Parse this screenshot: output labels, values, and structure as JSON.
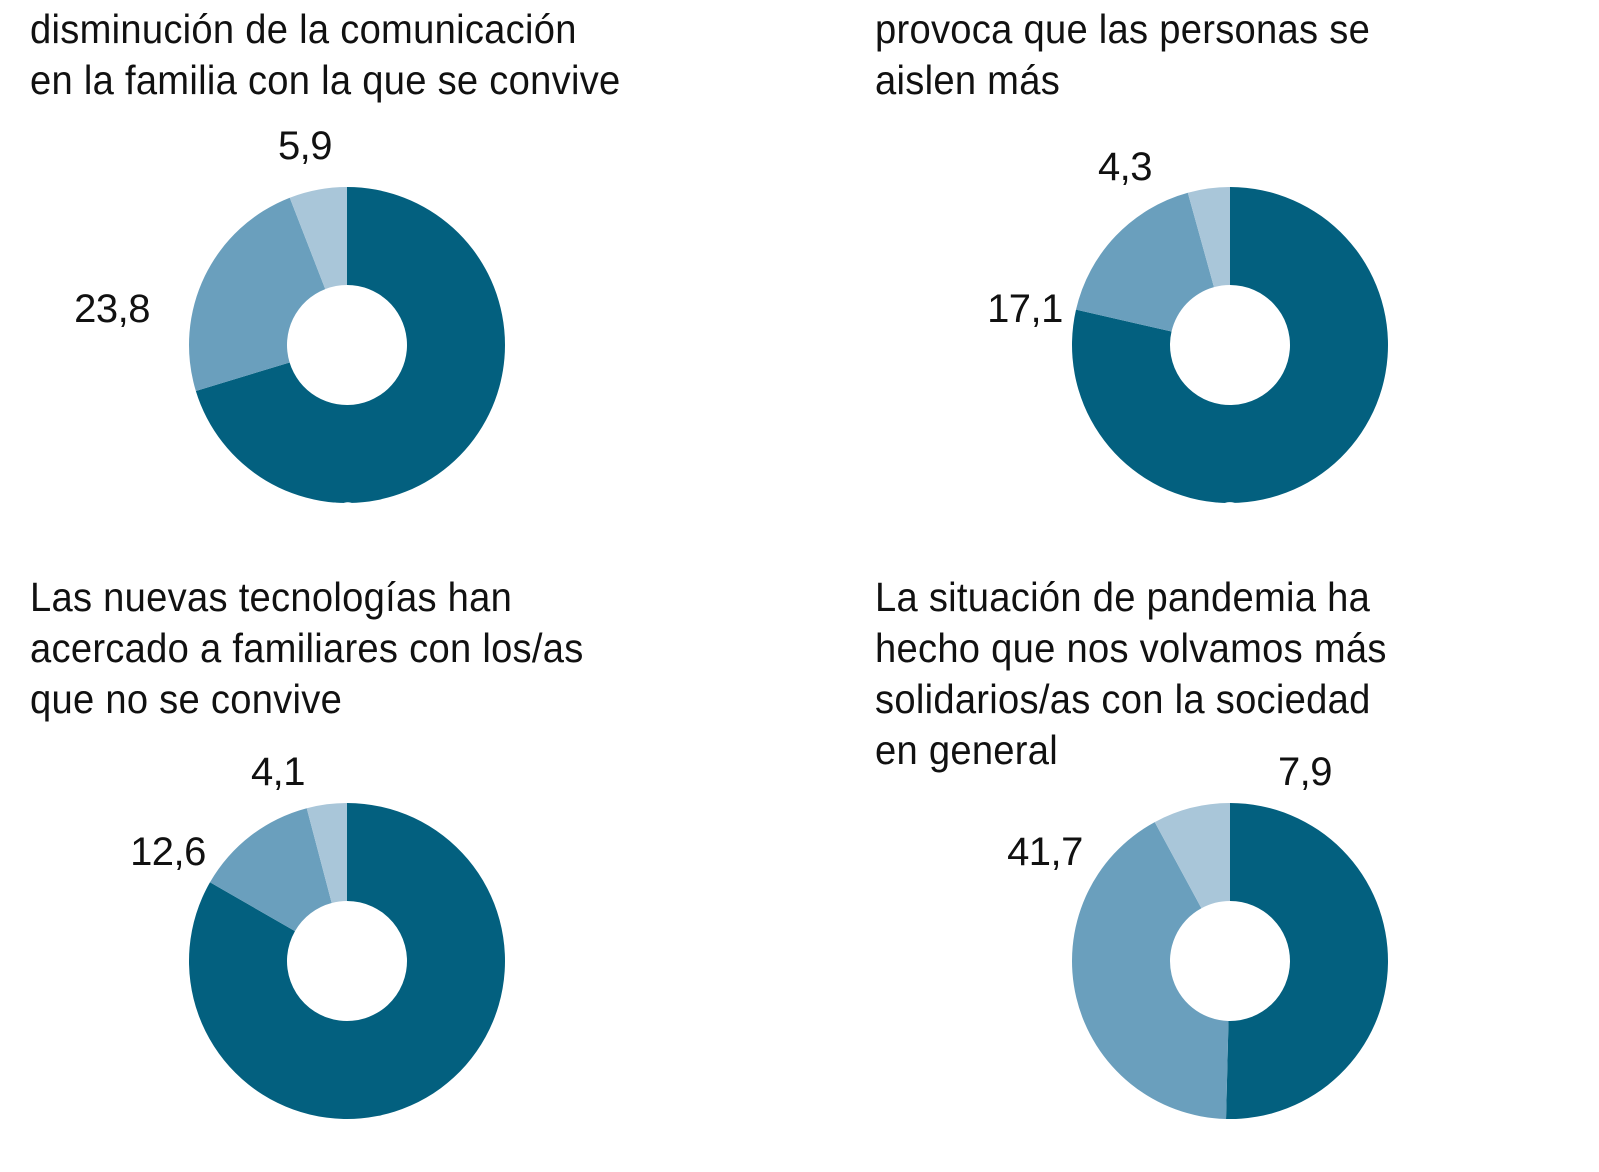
{
  "colors": {
    "dark": "#03607f",
    "medium": "#6a9fbd",
    "light": "#a9c6d9",
    "hole": "#ffffff"
  },
  "chart_data": [
    {
      "type": "pie",
      "variant": "donut",
      "title": "disminución de la comunicación\nen la familia con la que se convive",
      "title_partially_cropped": true,
      "slices": [
        {
          "label": "70,3",
          "value": 70.3,
          "shade": "dark"
        },
        {
          "label": "23,8",
          "value": 23.8,
          "shade": "medium"
        },
        {
          "label": "5,9",
          "value": 5.9,
          "shade": "light"
        }
      ]
    },
    {
      "type": "pie",
      "variant": "donut",
      "title": "provoca que las personas se\naislen más",
      "title_partially_cropped": true,
      "slices": [
        {
          "label": "78,6",
          "value": 78.6,
          "shade": "dark"
        },
        {
          "label": "17,1",
          "value": 17.1,
          "shade": "medium"
        },
        {
          "label": "4,3",
          "value": 4.3,
          "shade": "light"
        }
      ]
    },
    {
      "type": "pie",
      "variant": "donut",
      "title": "Las nuevas tecnologías han\nacercado a familiares con los/as\nque no se convive",
      "slices": [
        {
          "label": "",
          "value": 83.3,
          "shade": "dark"
        },
        {
          "label": "12,6",
          "value": 12.6,
          "shade": "medium"
        },
        {
          "label": "4,1",
          "value": 4.1,
          "shade": "light"
        }
      ]
    },
    {
      "type": "pie",
      "variant": "donut",
      "title": "La situación de pandemia ha\nhecho que nos volvamos más\nsolidarios/as con la sociedad\nen general",
      "slices": [
        {
          "label": "",
          "value": 50.4,
          "shade": "dark"
        },
        {
          "label": "41,7",
          "value": 41.7,
          "shade": "medium"
        },
        {
          "label": "7,9",
          "value": 7.9,
          "shade": "light"
        }
      ]
    }
  ]
}
